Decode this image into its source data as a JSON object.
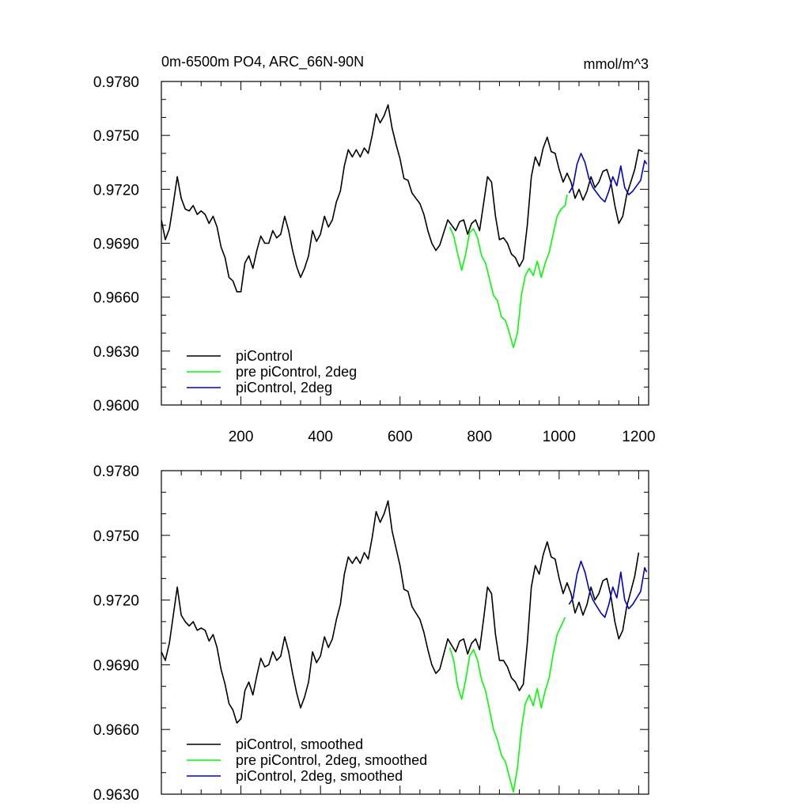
{
  "chart_data": [
    {
      "type": "line",
      "title": "0m-6500m PO4, ARC_66N-90N",
      "units": "mmol/m^3",
      "xlim": [
        0,
        1225
      ],
      "ylim": [
        0.96,
        0.978
      ],
      "x_ticks": [
        "200",
        "400",
        "600",
        "800",
        "1000",
        "1200"
      ],
      "y_ticks": [
        "0.9600",
        "0.9630",
        "0.9660",
        "0.9690",
        "0.9720",
        "0.9750",
        "0.9780"
      ],
      "legend_position": "bottom-left",
      "grid": false,
      "series": [
        {
          "name": "piControl",
          "color": "#000000",
          "x": [
            0,
            10,
            20,
            30,
            40,
            50,
            60,
            70,
            80,
            90,
            100,
            110,
            120,
            130,
            140,
            150,
            160,
            170,
            180,
            190,
            200,
            210,
            220,
            230,
            240,
            250,
            260,
            270,
            280,
            290,
            300,
            310,
            320,
            330,
            340,
            350,
            360,
            370,
            380,
            390,
            400,
            410,
            420,
            430,
            440,
            450,
            460,
            470,
            480,
            490,
            500,
            510,
            520,
            530,
            540,
            550,
            560,
            570,
            580,
            590,
            600,
            610,
            620,
            630,
            640,
            650,
            660,
            670,
            680,
            690,
            700,
            710,
            720,
            730,
            740,
            750,
            760,
            770,
            780,
            790,
            800,
            810,
            820,
            830,
            840,
            850,
            860,
            870,
            880,
            890,
            900,
            910,
            920,
            930,
            940,
            950,
            960,
            970,
            980,
            990,
            1000,
            1010,
            1020,
            1030,
            1040,
            1050,
            1060,
            1070,
            1080,
            1090,
            1100,
            1110,
            1120,
            1130,
            1140,
            1150,
            1160,
            1170,
            1180,
            1190,
            1200,
            1210
          ],
          "y": [
            0.9703,
            0.9692,
            0.9698,
            0.9712,
            0.9727,
            0.9715,
            0.9709,
            0.9708,
            0.9711,
            0.9706,
            0.9708,
            0.9706,
            0.9701,
            0.9705,
            0.9699,
            0.9688,
            0.9682,
            0.9671,
            0.9669,
            0.9663,
            0.9663,
            0.9679,
            0.9683,
            0.9676,
            0.9686,
            0.9694,
            0.969,
            0.969,
            0.9697,
            0.9693,
            0.9695,
            0.9705,
            0.9697,
            0.9686,
            0.9677,
            0.9671,
            0.9676,
            0.9683,
            0.9697,
            0.9691,
            0.9695,
            0.9705,
            0.9699,
            0.9703,
            0.9713,
            0.9719,
            0.9733,
            0.9742,
            0.9738,
            0.9742,
            0.9738,
            0.9743,
            0.974,
            0.975,
            0.9762,
            0.9757,
            0.9761,
            0.9767,
            0.9754,
            0.9745,
            0.9737,
            0.9726,
            0.9725,
            0.9718,
            0.9715,
            0.9712,
            0.9706,
            0.9697,
            0.969,
            0.9686,
            0.9689,
            0.9696,
            0.9703,
            0.97,
            0.9697,
            0.9702,
            0.9703,
            0.9695,
            0.9701,
            0.9703,
            0.9697,
            0.9712,
            0.9727,
            0.9724,
            0.9705,
            0.9692,
            0.9693,
            0.969,
            0.9684,
            0.9682,
            0.9677,
            0.9681,
            0.97,
            0.9727,
            0.9738,
            0.9733,
            0.9743,
            0.9749,
            0.9741,
            0.974,
            0.9731,
            0.9724,
            0.9729,
            0.9724,
            0.9715,
            0.972,
            0.9714,
            0.9719,
            0.9727,
            0.9721,
            0.9724,
            0.973,
            0.9731,
            0.9724,
            0.9711,
            0.9701,
            0.9705,
            0.9717,
            0.9724,
            0.9731,
            0.9742,
            0.9741
          ]
        },
        {
          "name": "pre piControl, 2deg",
          "color": "#00ff00",
          "x": [
            725,
            735,
            745,
            755,
            765,
            775,
            785,
            795,
            805,
            815,
            825,
            835,
            845,
            855,
            865,
            875,
            885,
            895,
            905,
            915,
            925,
            935,
            945,
            955,
            965,
            975,
            985,
            995,
            1005,
            1015,
            1020
          ],
          "y": [
            0.9699,
            0.9694,
            0.9684,
            0.9675,
            0.9684,
            0.9696,
            0.9698,
            0.9693,
            0.9683,
            0.9679,
            0.967,
            0.9661,
            0.9658,
            0.9649,
            0.9647,
            0.964,
            0.9632,
            0.964,
            0.9661,
            0.9672,
            0.9676,
            0.9672,
            0.968,
            0.9671,
            0.9679,
            0.9685,
            0.9695,
            0.9705,
            0.9709,
            0.9711,
            0.9717
          ]
        },
        {
          "name": "piControl, 2deg",
          "color": "#0000cc",
          "x": [
            1025,
            1035,
            1045,
            1055,
            1065,
            1075,
            1085,
            1095,
            1105,
            1115,
            1125,
            1135,
            1145,
            1155,
            1165,
            1175,
            1185,
            1195,
            1205,
            1215,
            1220
          ],
          "y": [
            0.9718,
            0.9722,
            0.9734,
            0.974,
            0.9735,
            0.9726,
            0.9721,
            0.9718,
            0.9715,
            0.9713,
            0.9719,
            0.9727,
            0.9722,
            0.9733,
            0.9721,
            0.9717,
            0.9719,
            0.9722,
            0.9725,
            0.9736,
            0.9734
          ]
        }
      ]
    },
    {
      "type": "line",
      "xlim": [
        0,
        1225
      ],
      "ylim": [
        0.963,
        0.978
      ],
      "x_ticks": [],
      "y_ticks": [
        "0.9630",
        "0.9660",
        "0.9690",
        "0.9720",
        "0.9750",
        "0.9780"
      ],
      "legend_position": "bottom-left",
      "grid": false,
      "series": [
        {
          "name": "piControl, smoothed",
          "color": "#000000",
          "x": [
            0,
            10,
            20,
            30,
            40,
            50,
            60,
            70,
            80,
            90,
            100,
            110,
            120,
            130,
            140,
            150,
            160,
            170,
            180,
            190,
            200,
            210,
            220,
            230,
            240,
            250,
            260,
            270,
            280,
            290,
            300,
            310,
            320,
            330,
            340,
            350,
            360,
            370,
            380,
            390,
            400,
            410,
            420,
            430,
            440,
            450,
            460,
            470,
            480,
            490,
            500,
            510,
            520,
            530,
            540,
            550,
            560,
            570,
            580,
            590,
            600,
            610,
            620,
            630,
            640,
            650,
            660,
            670,
            680,
            690,
            700,
            710,
            720,
            730,
            740,
            750,
            760,
            770,
            780,
            790,
            800,
            810,
            820,
            830,
            840,
            850,
            860,
            870,
            880,
            890,
            900,
            910,
            920,
            930,
            940,
            950,
            960,
            970,
            980,
            990,
            1000,
            1010,
            1020,
            1030,
            1040,
            1050,
            1060,
            1070,
            1080,
            1090,
            1100,
            1110,
            1120,
            1130,
            1140,
            1150,
            1160,
            1170,
            1180,
            1190,
            1200
          ],
          "y": [
            0.9696,
            0.9692,
            0.97,
            0.9713,
            0.9726,
            0.9713,
            0.971,
            0.9708,
            0.971,
            0.9706,
            0.9707,
            0.9706,
            0.9701,
            0.9704,
            0.9698,
            0.9688,
            0.9681,
            0.9672,
            0.9669,
            0.9663,
            0.9665,
            0.9678,
            0.9682,
            0.9676,
            0.9685,
            0.9693,
            0.9689,
            0.969,
            0.9696,
            0.9692,
            0.9694,
            0.9703,
            0.9696,
            0.9686,
            0.9677,
            0.967,
            0.9675,
            0.9682,
            0.9696,
            0.9691,
            0.9694,
            0.9703,
            0.9698,
            0.9702,
            0.9711,
            0.9718,
            0.9732,
            0.974,
            0.9737,
            0.974,
            0.9737,
            0.9742,
            0.9739,
            0.9749,
            0.9761,
            0.9756,
            0.976,
            0.9766,
            0.9752,
            0.9744,
            0.9736,
            0.9725,
            0.9724,
            0.9717,
            0.9714,
            0.9711,
            0.9705,
            0.9697,
            0.969,
            0.9686,
            0.9688,
            0.9695,
            0.9702,
            0.9699,
            0.9696,
            0.9701,
            0.9702,
            0.9695,
            0.97,
            0.9702,
            0.9697,
            0.9711,
            0.9726,
            0.9723,
            0.9704,
            0.9692,
            0.9692,
            0.9689,
            0.9684,
            0.9682,
            0.9678,
            0.9681,
            0.97,
            0.9726,
            0.9736,
            0.9732,
            0.9741,
            0.9747,
            0.974,
            0.9739,
            0.973,
            0.9723,
            0.9728,
            0.9723,
            0.9714,
            0.9719,
            0.9713,
            0.9718,
            0.9726,
            0.972,
            0.9723,
            0.9729,
            0.973,
            0.9722,
            0.971,
            0.9702,
            0.9706,
            0.9717,
            0.9724,
            0.9731,
            0.9742
          ]
        },
        {
          "name": "pre piControl, 2deg, smoothed",
          "color": "#00ff00",
          "x": [
            725,
            735,
            745,
            755,
            765,
            775,
            785,
            795,
            805,
            815,
            825,
            835,
            845,
            855,
            865,
            875,
            885,
            895,
            905,
            915,
            925,
            935,
            945,
            955,
            965,
            975,
            985,
            995,
            1005,
            1015
          ],
          "y": [
            0.9698,
            0.9692,
            0.968,
            0.9674,
            0.9683,
            0.9694,
            0.9697,
            0.9692,
            0.9683,
            0.9678,
            0.9669,
            0.966,
            0.9655,
            0.9648,
            0.9645,
            0.9638,
            0.9631,
            0.9642,
            0.966,
            0.9672,
            0.9676,
            0.9671,
            0.9679,
            0.967,
            0.9678,
            0.9684,
            0.9695,
            0.9704,
            0.9708,
            0.9712
          ]
        },
        {
          "name": "piControl, 2deg, smoothed",
          "color": "#0000cc",
          "x": [
            1025,
            1035,
            1045,
            1055,
            1065,
            1075,
            1085,
            1095,
            1105,
            1115,
            1125,
            1135,
            1145,
            1155,
            1165,
            1175,
            1185,
            1195,
            1205,
            1215,
            1220
          ],
          "y": [
            0.9718,
            0.9721,
            0.9732,
            0.9738,
            0.9733,
            0.9725,
            0.972,
            0.9717,
            0.9714,
            0.9712,
            0.9718,
            0.9726,
            0.9721,
            0.9733,
            0.972,
            0.9716,
            0.9718,
            0.9721,
            0.9724,
            0.9735,
            0.9733
          ]
        }
      ]
    }
  ]
}
